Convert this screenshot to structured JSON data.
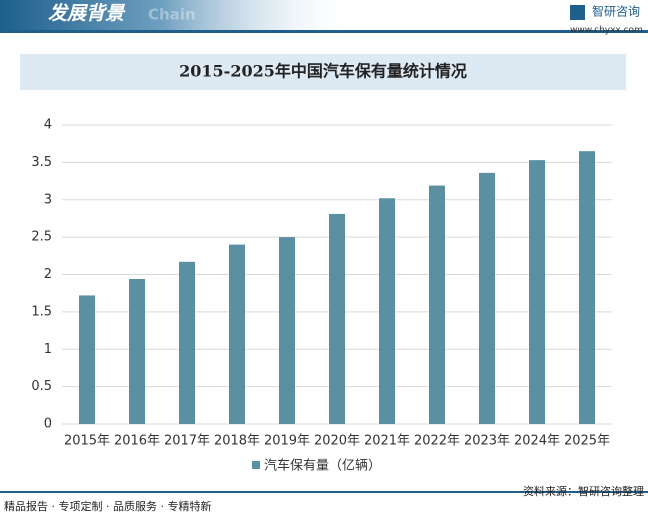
{
  "header": {
    "title": "发展背景",
    "watermark": "Chain",
    "brand": "智研咨询",
    "url": "www.chyxx.com"
  },
  "chart_data": {
    "type": "bar",
    "title": "2015-2025年中国汽车保有量统计情况",
    "categories": [
      "2015年",
      "2016年",
      "2017年",
      "2018年",
      "2019年",
      "2020年",
      "2021年",
      "2022年",
      "2023年",
      "2024年",
      "2025年"
    ],
    "series": [
      {
        "name": "汽车保有量（亿辆）",
        "color": "#5b8fa2",
        "values": [
          1.72,
          1.94,
          2.17,
          2.4,
          2.5,
          2.81,
          3.02,
          3.19,
          3.36,
          3.53,
          3.65
        ]
      }
    ],
    "ylim": [
      0,
      4
    ],
    "yticks": [
      0,
      0.5,
      1,
      1.5,
      2,
      2.5,
      3,
      3.5,
      4
    ],
    "grid": true,
    "legend": "bottom"
  },
  "footer": {
    "left": "精品报告 · 专项定制 · 品质服务 · 专精特新",
    "source": "资料来源：智研咨询整理"
  }
}
